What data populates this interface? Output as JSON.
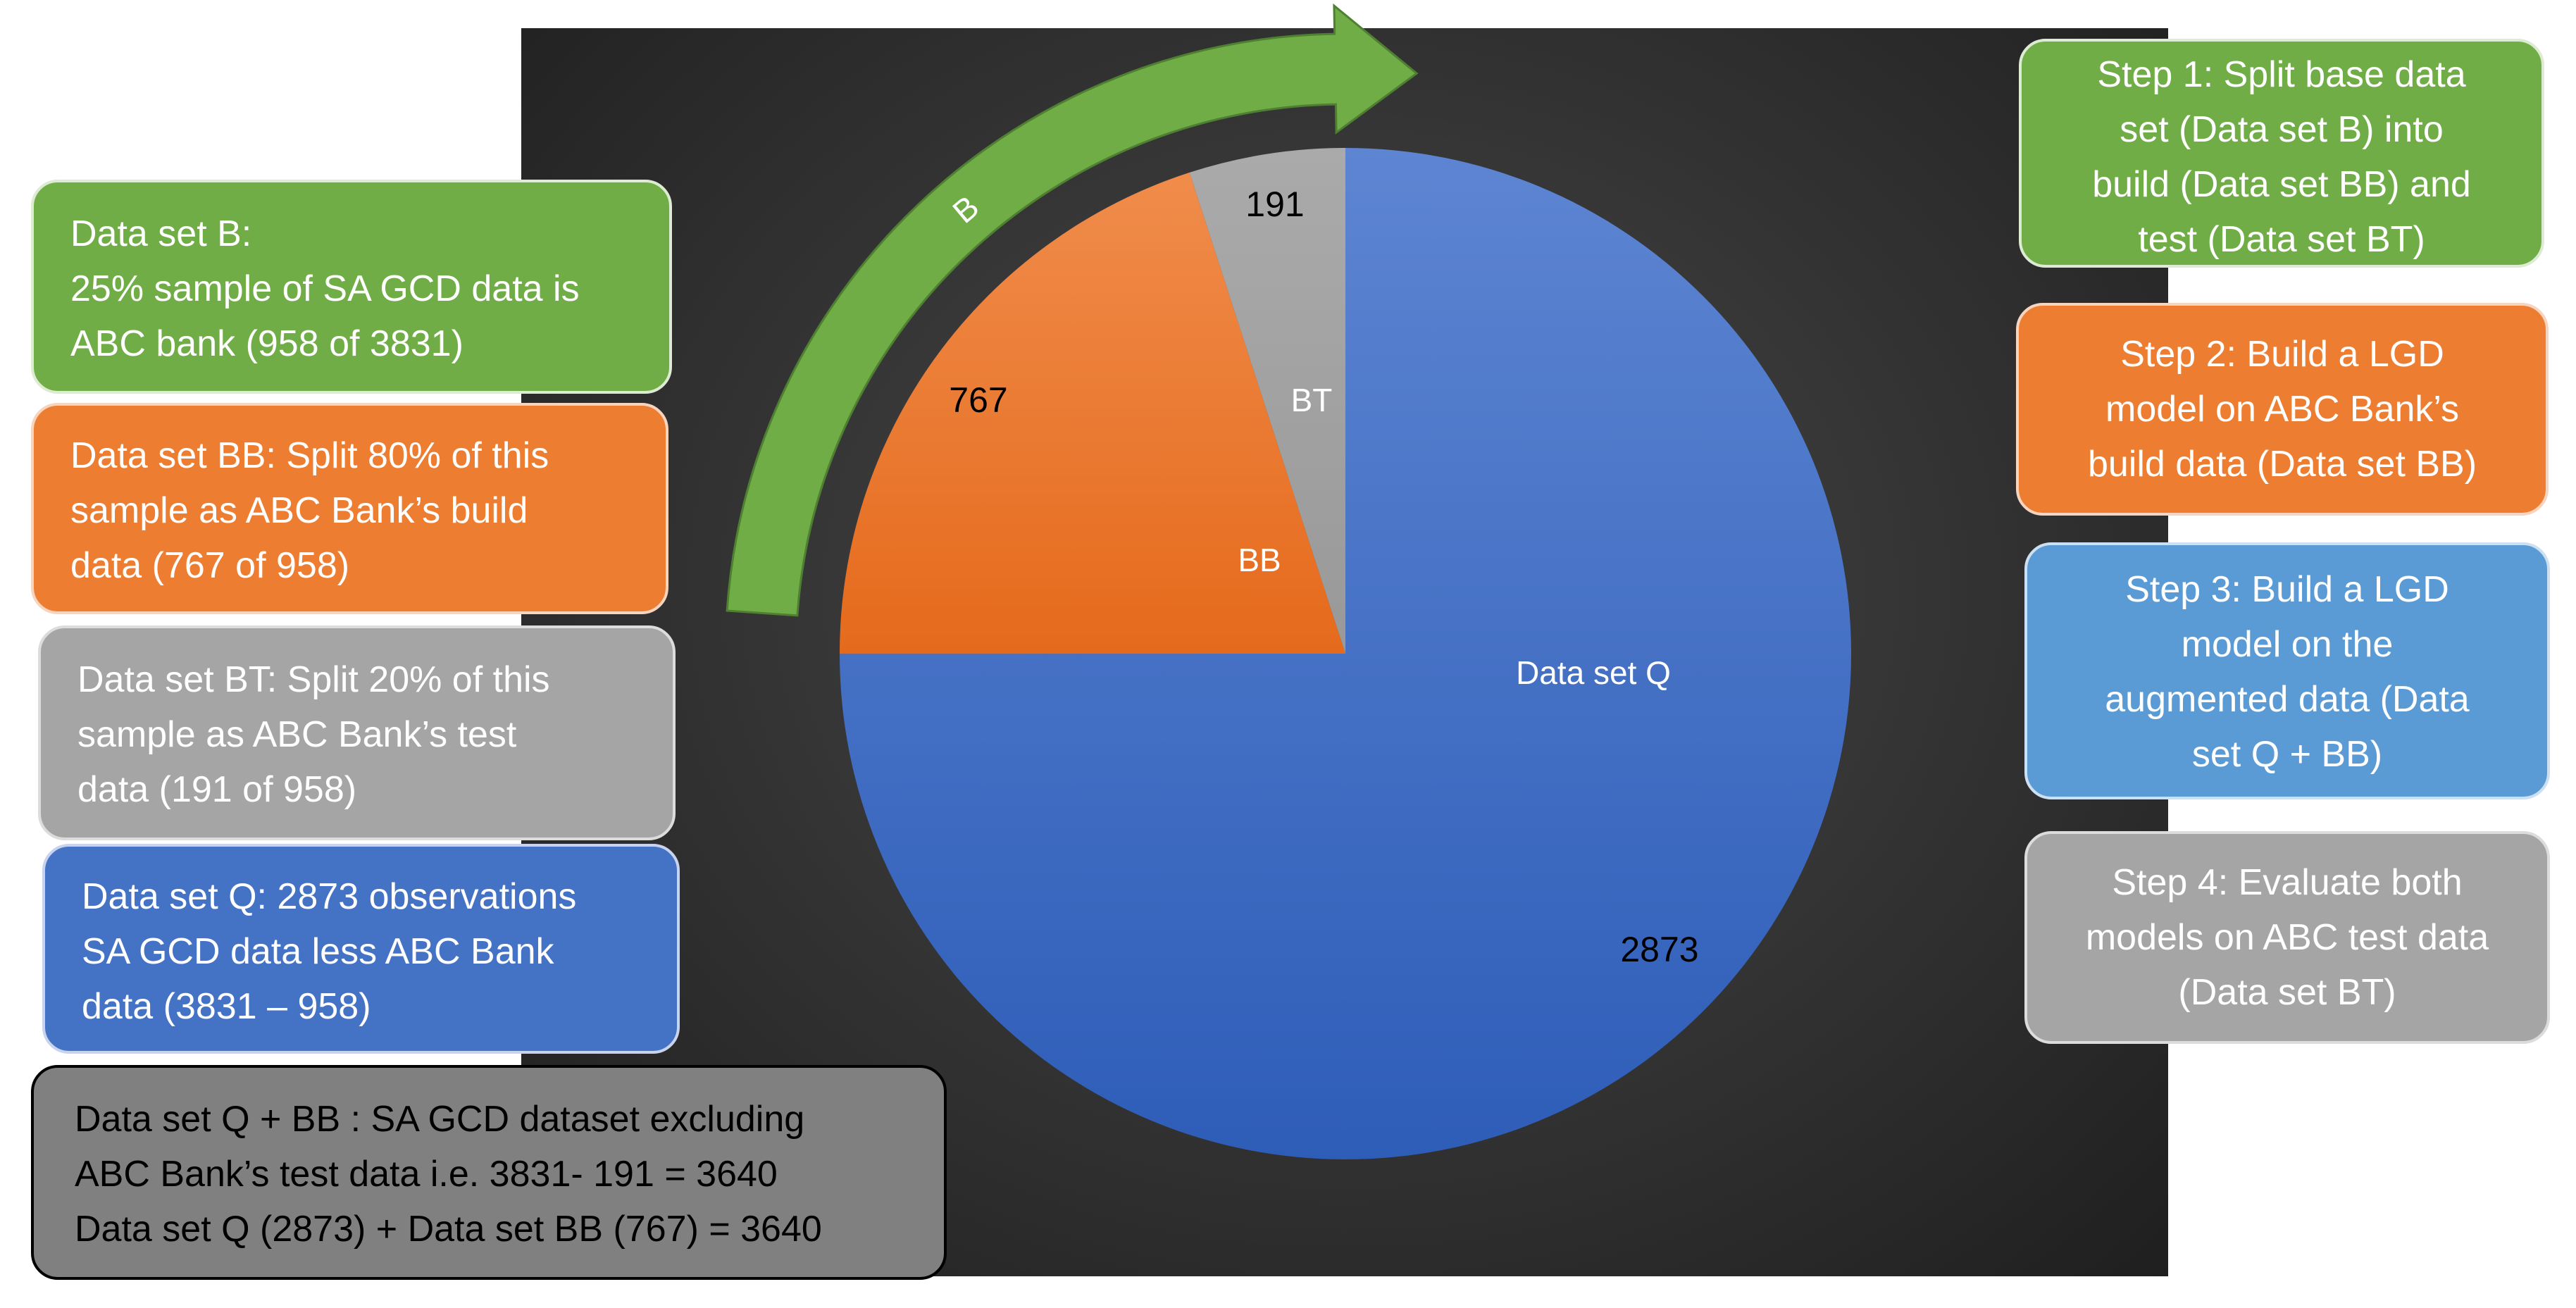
{
  "chart_data": {
    "type": "pie",
    "slices": [
      {
        "label": "Data set Q",
        "value": 2873,
        "value_label": "2873",
        "color": "#4472c4"
      },
      {
        "label": "BB",
        "value": 767,
        "value_label": "767",
        "color": "#ed7d31"
      },
      {
        "label": "BT",
        "value": 191,
        "value_label": "191",
        "color": "#a5a5a5"
      }
    ],
    "arc_label": "B",
    "arc_color": "#70ad47"
  },
  "left_boxes": [
    {
      "lines": [
        "Data set B:",
        "25% sample of SA GCD data is",
        "ABC bank  (958 of 3831)"
      ]
    },
    {
      "lines": [
        "Data set BB: Split 80% of this",
        "sample as ABC Bank’s build",
        "data (767 of 958)"
      ]
    },
    {
      "lines": [
        "Data set BT: Split 20% of this",
        "sample as ABC Bank’s test",
        "data (191 of 958)"
      ]
    },
    {
      "lines": [
        "Data set Q: 2873 observations",
        "SA GCD data less ABC Bank",
        "data (3831 – 958)"
      ]
    },
    {
      "lines": [
        "Data set Q + BB : SA GCD dataset excluding",
        "ABC Bank’s test data i.e. 3831- 191 =  3640",
        "Data set Q (2873) + Data set BB (767) = 3640"
      ]
    }
  ],
  "steps": [
    {
      "lines": [
        "Step 1:  Split base data",
        "set (Data set B) into",
        "build (Data set BB) and",
        "test (Data set BT)"
      ]
    },
    {
      "lines": [
        "Step 2: Build a LGD",
        "model on ABC Bank’s",
        "build data (Data set BB)"
      ]
    },
    {
      "lines": [
        "Step 3: Build a LGD",
        "model on the",
        "augmented data (Data",
        "set Q + BB)"
      ]
    },
    {
      "lines": [
        "Step 4: Evaluate both",
        "models on ABC test data",
        "(Data set BT)"
      ]
    }
  ]
}
